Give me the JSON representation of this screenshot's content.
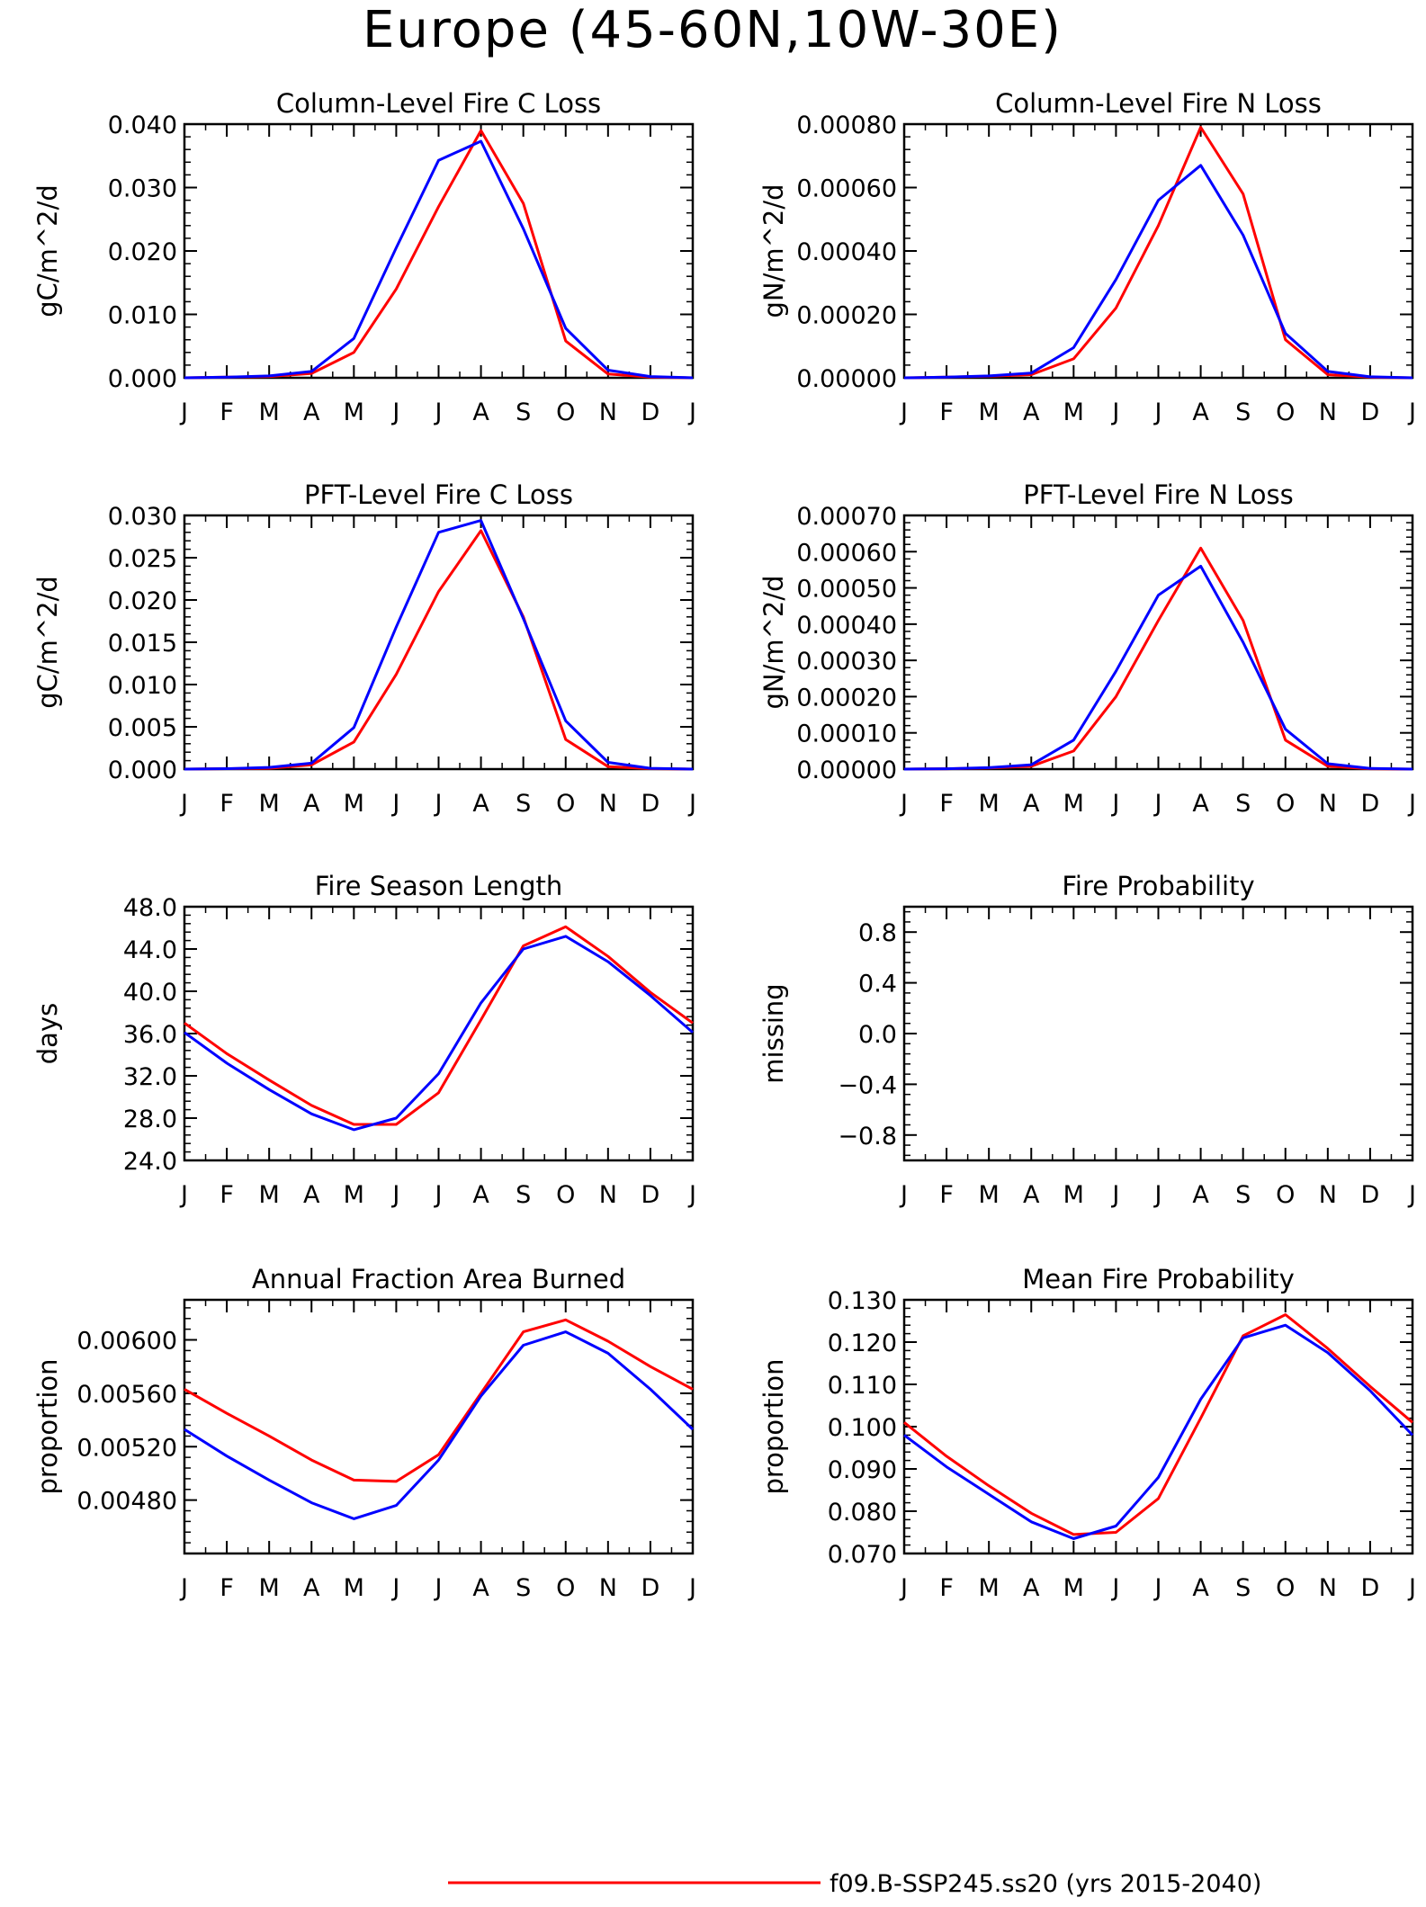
{
  "page": {
    "title": "Europe (45-60N,10W-30E)"
  },
  "months": [
    "J",
    "F",
    "M",
    "A",
    "M",
    "J",
    "J",
    "A",
    "S",
    "O",
    "N",
    "D",
    "J"
  ],
  "colors": {
    "series1": "#ff0000",
    "series2": "#0000ff",
    "axis": "#000000"
  },
  "legend": {
    "entries": [
      {
        "name": "f09.B-SSP245.ss20 (yrs 2015-2040)",
        "color": "#ff0000"
      }
    ]
  },
  "chart_data": [
    {
      "type": "line",
      "title": "Column-Level Fire C Loss",
      "ylabel": "gC/m^2/d",
      "ylim": [
        0,
        0.04
      ],
      "yticks": [
        0,
        0.01,
        0.02,
        0.03,
        0.04
      ],
      "ytick_labels": [
        "0.000",
        "0.010",
        "0.020",
        "0.030",
        "0.040"
      ],
      "series": [
        {
          "color": "#ff0000",
          "values": [
            0.0,
            0.0001,
            0.0002,
            0.0007,
            0.004,
            0.014,
            0.027,
            0.039,
            0.0275,
            0.0058,
            0.0006,
            0.0001,
            0.0
          ]
        },
        {
          "color": "#0000ff",
          "values": [
            0.0,
            0.0001,
            0.0003,
            0.001,
            0.0062,
            0.0205,
            0.0343,
            0.0373,
            0.0235,
            0.0078,
            0.0012,
            0.0002,
            0.0
          ]
        }
      ]
    },
    {
      "type": "line",
      "title": "Column-Level Fire N Loss",
      "ylabel": "gN/m^2/d",
      "ylim": [
        0,
        0.0008
      ],
      "yticks": [
        0,
        0.0002,
        0.0004,
        0.0006,
        0.0008
      ],
      "ytick_labels": [
        "0.00000",
        "0.00020",
        "0.00040",
        "0.00060",
        "0.00080"
      ],
      "series": [
        {
          "color": "#ff0000",
          "values": [
            0.0,
            2e-06,
            5e-06,
            1e-05,
            6e-05,
            0.00022,
            0.00048,
            0.00079,
            0.00058,
            0.00012,
            1e-05,
            2e-06,
            0.0
          ]
        },
        {
          "color": "#0000ff",
          "values": [
            0.0,
            2e-06,
            6e-06,
            1.5e-05,
            9.5e-05,
            0.00031,
            0.00056,
            0.00067,
            0.00045,
            0.00014,
            2e-05,
            3e-06,
            0.0
          ]
        }
      ]
    },
    {
      "type": "line",
      "title": "PFT-Level Fire C Loss",
      "ylabel": "gC/m^2/d",
      "ylim": [
        0,
        0.03
      ],
      "yticks": [
        0,
        0.005,
        0.01,
        0.015,
        0.02,
        0.025,
        0.03
      ],
      "ytick_labels": [
        "0.000",
        "0.005",
        "0.010",
        "0.015",
        "0.020",
        "0.025",
        "0.030"
      ],
      "series": [
        {
          "color": "#ff0000",
          "values": [
            0.0,
            5e-05,
            0.0001,
            0.0005,
            0.0032,
            0.0112,
            0.021,
            0.0282,
            0.018,
            0.0035,
            0.0003,
            5e-05,
            0.0
          ]
        },
        {
          "color": "#0000ff",
          "values": [
            0.0,
            5e-05,
            0.0002,
            0.0007,
            0.0049,
            0.0168,
            0.028,
            0.0294,
            0.0178,
            0.0057,
            0.0008,
            0.0001,
            0.0
          ]
        }
      ]
    },
    {
      "type": "line",
      "title": "PFT-Level Fire N Loss",
      "ylabel": "gN/m^2/d",
      "ylim": [
        0,
        0.0007
      ],
      "yticks": [
        0,
        0.0001,
        0.0002,
        0.0003,
        0.0004,
        0.0005,
        0.0006,
        0.0007
      ],
      "ytick_labels": [
        "0.00000",
        "0.00010",
        "0.00020",
        "0.00030",
        "0.00040",
        "0.00050",
        "0.00060",
        "0.00070"
      ],
      "series": [
        {
          "color": "#ff0000",
          "values": [
            0.0,
            1e-06,
            3e-06,
            8e-06,
            5e-05,
            0.0002,
            0.00041,
            0.00061,
            0.00041,
            8e-05,
            8e-06,
            1e-06,
            0.0
          ]
        },
        {
          "color": "#0000ff",
          "values": [
            0.0,
            1e-06,
            4e-06,
            1.2e-05,
            8e-05,
            0.00027,
            0.00048,
            0.00056,
            0.00035,
            0.00011,
            1.5e-05,
            2e-06,
            0.0
          ]
        }
      ]
    },
    {
      "type": "line",
      "title": "Fire Season Length",
      "ylabel": "days",
      "ylim": [
        24,
        48
      ],
      "yticks": [
        24,
        28,
        32,
        36,
        40,
        44,
        48
      ],
      "ytick_labels": [
        "24.0",
        "28.0",
        "32.0",
        "36.0",
        "40.0",
        "44.0",
        "48.0"
      ],
      "series": [
        {
          "color": "#ff0000",
          "values": [
            37.0,
            34.1,
            31.6,
            29.2,
            27.4,
            27.4,
            30.4,
            37.3,
            44.3,
            46.1,
            43.3,
            39.9,
            37.0
          ]
        },
        {
          "color": "#0000ff",
          "values": [
            36.1,
            33.2,
            30.7,
            28.4,
            26.9,
            28.0,
            32.2,
            38.9,
            44.0,
            45.2,
            42.8,
            39.6,
            36.1
          ]
        }
      ]
    },
    {
      "type": "line",
      "title": "Fire Probability",
      "ylabel": "missing",
      "ylim": [
        -1,
        1
      ],
      "yticks": [
        -0.8,
        -0.4,
        0.0,
        0.4,
        0.8
      ],
      "ytick_labels": [
        "−0.8",
        "−0.4",
        "0.0",
        "0.4",
        "0.8"
      ],
      "series": []
    },
    {
      "type": "line",
      "title": "Annual Fraction Area Burned",
      "ylabel": "proportion",
      "ylim": [
        0.0044,
        0.0063
      ],
      "yticks": [
        0.0048,
        0.0052,
        0.0056,
        0.006
      ],
      "ytick_labels": [
        "0.00480",
        "0.00520",
        "0.00560",
        "0.00600"
      ],
      "series": [
        {
          "color": "#ff0000",
          "values": [
            0.00563,
            0.00545,
            0.00528,
            0.0051,
            0.00495,
            0.00494,
            0.00514,
            0.0056,
            0.00606,
            0.00615,
            0.00599,
            0.0058,
            0.00563
          ]
        },
        {
          "color": "#0000ff",
          "values": [
            0.00533,
            0.00513,
            0.00495,
            0.00478,
            0.00466,
            0.00476,
            0.0051,
            0.00558,
            0.00596,
            0.00606,
            0.0059,
            0.00563,
            0.00533
          ]
        }
      ]
    },
    {
      "type": "line",
      "title": "Mean Fire Probability",
      "ylabel": "proportion",
      "ylim": [
        0.07,
        0.13
      ],
      "yticks": [
        0.07,
        0.08,
        0.09,
        0.1,
        0.11,
        0.12,
        0.13
      ],
      "ytick_labels": [
        "0.070",
        "0.080",
        "0.090",
        "0.100",
        "0.110",
        "0.120",
        "0.130"
      ],
      "series": [
        {
          "color": "#ff0000",
          "values": [
            0.101,
            0.093,
            0.086,
            0.0795,
            0.0745,
            0.075,
            0.083,
            0.102,
            0.1215,
            0.1265,
            0.1185,
            0.1095,
            0.101
          ]
        },
        {
          "color": "#0000ff",
          "values": [
            0.098,
            0.0905,
            0.084,
            0.0775,
            0.0735,
            0.0765,
            0.088,
            0.1065,
            0.121,
            0.124,
            0.1175,
            0.1085,
            0.098
          ]
        }
      ]
    }
  ]
}
